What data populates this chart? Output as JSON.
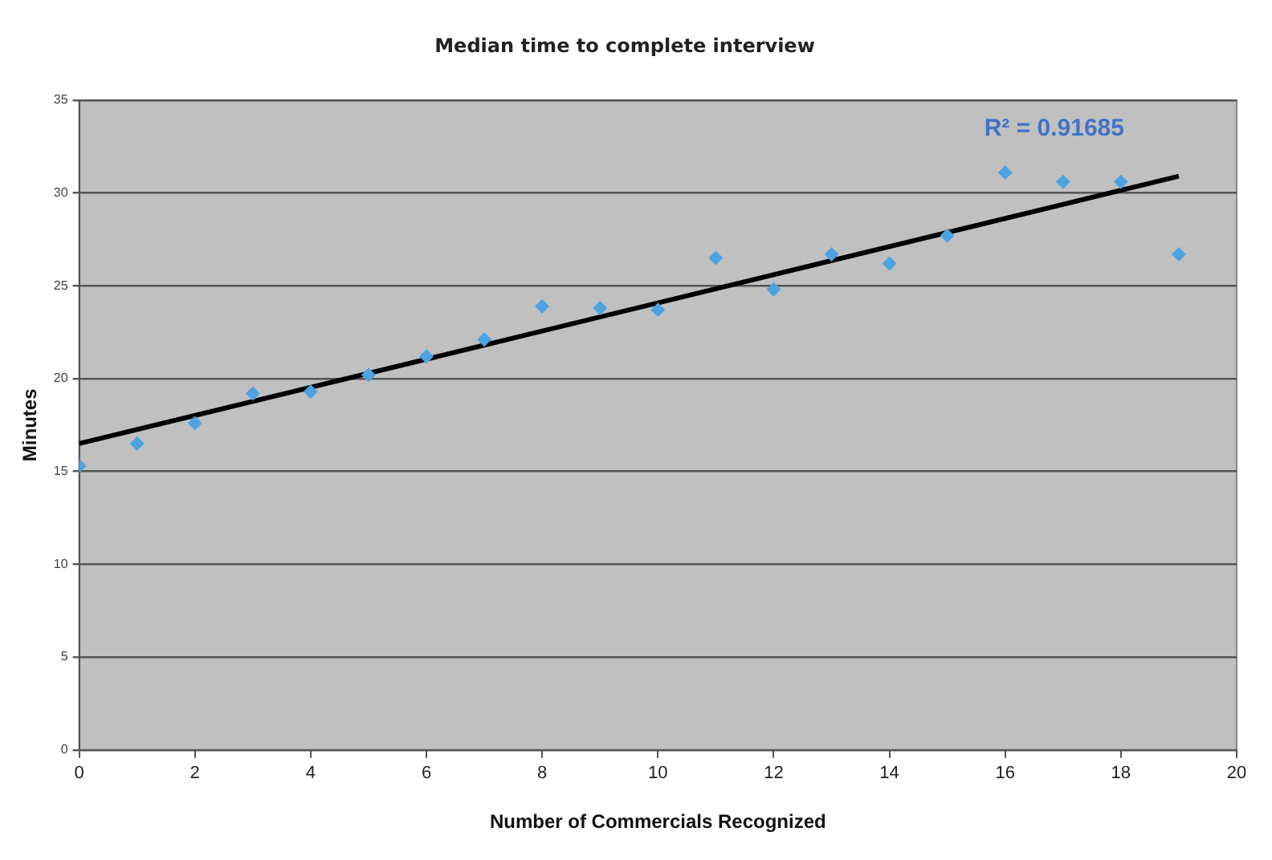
{
  "chart_data": {
    "type": "scatter",
    "title": "Median time to complete interview",
    "xlabel": "Number of Commercials Recognized",
    "ylabel": "Minutes",
    "xlim": [
      0,
      20
    ],
    "xticks": [
      0,
      2,
      4,
      6,
      8,
      10,
      12,
      14,
      16,
      18,
      20
    ],
    "ylim": [
      0,
      35
    ],
    "yticks": [
      0,
      5,
      10,
      15,
      20,
      25,
      30,
      35
    ],
    "grid": "y",
    "legend": false,
    "marker": "diamond",
    "annotations": [
      "R² = 0.91685"
    ],
    "series": [
      {
        "type": "scatter",
        "color": "#4da3e0",
        "x": [
          0,
          1,
          2,
          3,
          4,
          5,
          6,
          7,
          8,
          9,
          10,
          11,
          12,
          13,
          14,
          15,
          16,
          17,
          18,
          19
        ],
        "values": [
          15.3,
          16.5,
          17.6,
          19.2,
          19.3,
          20.2,
          21.2,
          22.1,
          23.9,
          23.8,
          23.7,
          26.5,
          24.8,
          26.7,
          26.2,
          27.7,
          31.1,
          30.6,
          30.6,
          26.7
        ]
      },
      {
        "type": "line",
        "color": "#000000",
        "line_style": "solid",
        "marker": "none",
        "x": [
          0,
          19
        ],
        "values": [
          16.5,
          30.9
        ]
      }
    ]
  }
}
